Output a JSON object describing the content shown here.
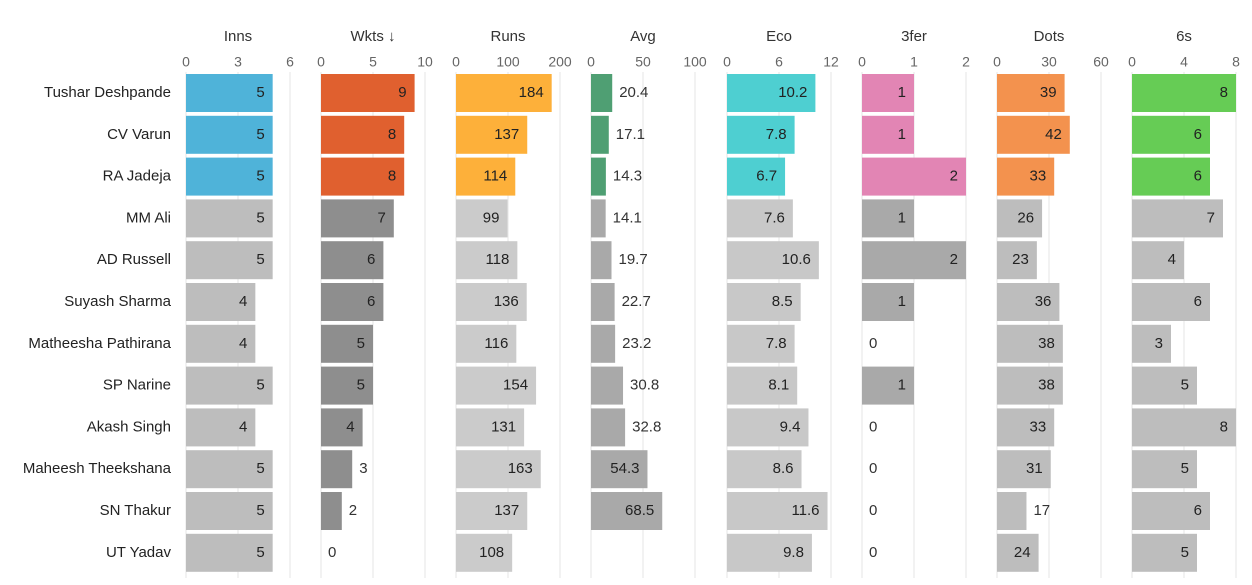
{
  "chart_data": {
    "type": "bar",
    "orientation": "horizontal",
    "players": [
      "Tushar Deshpande",
      "CV Varun",
      "RA Jadeja",
      "MM Ali",
      "AD Russell",
      "Suyash Sharma",
      "Matheesha Pathirana",
      "SP Narine",
      "Akash Singh",
      "Maheesh Theekshana",
      "SN Thakur",
      "UT Yadav"
    ],
    "highlight_top_n": 3,
    "highlight_colors": {
      "Inns": "#4fb3d9",
      "Wkts": "#e0602f",
      "Runs": "#fdb03a",
      "Avg": "#4f9f73",
      "Eco": "#4ecfd1",
      "3fer": "#e285b4",
      "Dots": "#f3924e",
      "6s": "#66cc55"
    },
    "columns": [
      {
        "key": "Inns",
        "title": "Inns",
        "ticks": [
          "0",
          "3",
          "6"
        ],
        "max": 6,
        "base_color": "#bdbdbd",
        "values": [
          5,
          5,
          5,
          5,
          5,
          4,
          4,
          5,
          4,
          5,
          5,
          5
        ],
        "labels": [
          "5",
          "5",
          "5",
          "5",
          "5",
          "4",
          "4",
          "5",
          "4",
          "5",
          "5",
          "5"
        ]
      },
      {
        "key": "Wkts",
        "title": "Wkts ↓",
        "ticks": [
          "0",
          "5",
          "10"
        ],
        "max": 10,
        "base_color": "#8e8e8e",
        "values": [
          9,
          8,
          8,
          7,
          6,
          6,
          5,
          5,
          4,
          3,
          2,
          0
        ],
        "labels": [
          "9",
          "8",
          "8",
          "7",
          "6",
          "6",
          "5",
          "5",
          "4",
          "3",
          "2",
          "0"
        ]
      },
      {
        "key": "Runs",
        "title": "Runs",
        "ticks": [
          "0",
          "100",
          "200"
        ],
        "max": 200,
        "base_color": "#cbcbcb",
        "values": [
          184,
          137,
          114,
          99,
          118,
          136,
          116,
          154,
          131,
          163,
          137,
          108
        ],
        "labels": [
          "184",
          "137",
          "114",
          "99",
          "118",
          "136",
          "116",
          "154",
          "131",
          "163",
          "137",
          "108"
        ]
      },
      {
        "key": "Avg",
        "title": "Avg",
        "ticks": [
          "0",
          "50",
          "100"
        ],
        "max": 100,
        "base_color": "#a9a9a9",
        "values": [
          20.4,
          17.1,
          14.3,
          14.1,
          19.7,
          22.7,
          23.2,
          30.8,
          32.8,
          54.3,
          68.5,
          0
        ],
        "labels": [
          "20.4",
          "17.1",
          "14.3",
          "14.1",
          "19.7",
          "22.7",
          "23.2",
          "30.8",
          "32.8",
          "54.3",
          "68.5",
          ""
        ]
      },
      {
        "key": "Eco",
        "title": "Eco",
        "ticks": [
          "0",
          "6",
          "12"
        ],
        "max": 12,
        "base_color": "#c8c8c8",
        "values": [
          10.2,
          7.8,
          6.7,
          7.6,
          10.6,
          8.5,
          7.8,
          8.1,
          9.4,
          8.6,
          11.6,
          9.8
        ],
        "labels": [
          "10.2",
          "7.8",
          "6.7",
          "7.6",
          "10.6",
          "8.5",
          "7.8",
          "8.1",
          "9.4",
          "8.6",
          "11.6",
          "9.8"
        ]
      },
      {
        "key": "3fer",
        "title": "3fer",
        "ticks": [
          "0",
          "1",
          "2"
        ],
        "max": 2,
        "base_color": "#a9a9a9",
        "values": [
          1,
          1,
          2,
          1,
          2,
          1,
          0,
          1,
          0,
          0,
          0,
          0
        ],
        "labels": [
          "1",
          "1",
          "2",
          "1",
          "2",
          "1",
          "0",
          "1",
          "0",
          "0",
          "0",
          "0"
        ]
      },
      {
        "key": "Dots",
        "title": "Dots",
        "ticks": [
          "0",
          "30",
          "60"
        ],
        "max": 60,
        "base_color": "#bdbdbd",
        "values": [
          39,
          42,
          33,
          26,
          23,
          36,
          38,
          38,
          33,
          31,
          17,
          24
        ],
        "labels": [
          "39",
          "42",
          "33",
          "26",
          "23",
          "36",
          "38",
          "38",
          "33",
          "31",
          "17",
          "24"
        ]
      },
      {
        "key": "6s",
        "title": "6s",
        "ticks": [
          "0",
          "4",
          "8"
        ],
        "max": 8,
        "base_color": "#bdbdbd",
        "values": [
          8,
          6,
          6,
          7,
          4,
          6,
          3,
          5,
          8,
          5,
          6,
          5
        ],
        "labels": [
          "8",
          "6",
          "6",
          "7",
          "4",
          "6",
          "3",
          "5",
          "8",
          "5",
          "6",
          "5"
        ]
      }
    ]
  }
}
